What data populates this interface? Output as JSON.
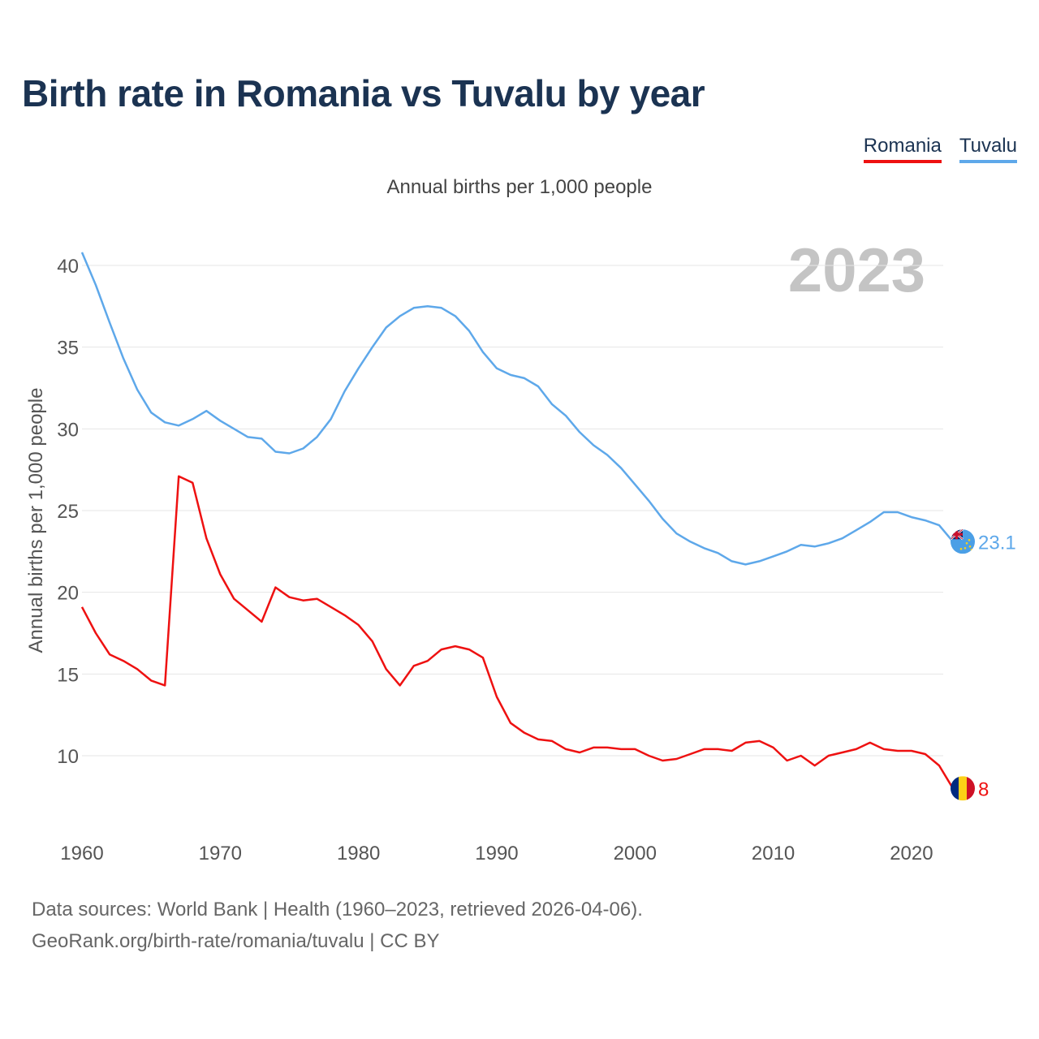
{
  "title": "Birth rate in Romania vs Tuvalu by year",
  "subtitle": "Annual births per 1,000 people",
  "year_label": "2023",
  "legend": [
    {
      "name": "Romania",
      "color": "#ee1111"
    },
    {
      "name": "Tuvalu",
      "color": "#5ea8ea"
    }
  ],
  "source_lines": [
    "Data sources: World Bank | Health (1960–2023, retrieved 2026-04-06).",
    "GeoRank.org/birth-rate/romania/tuvalu | CC BY"
  ],
  "chart_data": {
    "type": "line",
    "title": "Birth rate in Romania vs Tuvalu by year",
    "xlabel": "",
    "ylabel": "Annual births per 1,000 people",
    "xlim": [
      1960,
      2023
    ],
    "ylim": [
      6,
      43
    ],
    "x_ticks": [
      1960,
      1970,
      1980,
      1990,
      2000,
      2010,
      2020
    ],
    "y_ticks": [
      10,
      15,
      20,
      25,
      30,
      35,
      40
    ],
    "grid": true,
    "legend_position": "top-right",
    "x": [
      1960,
      1961,
      1962,
      1963,
      1964,
      1965,
      1966,
      1967,
      1968,
      1969,
      1970,
      1971,
      1972,
      1973,
      1974,
      1975,
      1976,
      1977,
      1978,
      1979,
      1980,
      1981,
      1982,
      1983,
      1984,
      1985,
      1986,
      1987,
      1988,
      1989,
      1990,
      1991,
      1992,
      1993,
      1994,
      1995,
      1996,
      1997,
      1998,
      1999,
      2000,
      2001,
      2002,
      2003,
      2004,
      2005,
      2006,
      2007,
      2008,
      2009,
      2010,
      2011,
      2012,
      2013,
      2014,
      2015,
      2016,
      2017,
      2018,
      2019,
      2020,
      2021,
      2022,
      2023
    ],
    "series": [
      {
        "name": "Romania",
        "color": "#ee1111",
        "end_label": "8",
        "values": [
          19.1,
          17.5,
          16.2,
          15.8,
          15.3,
          14.6,
          14.3,
          27.1,
          26.7,
          23.3,
          21.1,
          19.6,
          18.9,
          18.2,
          20.3,
          19.7,
          19.5,
          19.6,
          19.1,
          18.6,
          18.0,
          17.0,
          15.3,
          14.3,
          15.5,
          15.8,
          16.5,
          16.7,
          16.5,
          16.0,
          13.6,
          12.0,
          11.4,
          11.0,
          10.9,
          10.4,
          10.2,
          10.5,
          10.5,
          10.4,
          10.4,
          10.0,
          9.7,
          9.8,
          10.1,
          10.4,
          10.4,
          10.3,
          10.8,
          10.9,
          10.5,
          9.7,
          10.0,
          9.4,
          10.0,
          10.2,
          10.4,
          10.8,
          10.4,
          10.3,
          10.3,
          10.1,
          9.4,
          8.0
        ]
      },
      {
        "name": "Tuvalu",
        "color": "#5ea8ea",
        "end_label": "23.1",
        "values": [
          40.8,
          38.8,
          36.5,
          34.3,
          32.4,
          31.0,
          30.4,
          30.2,
          30.6,
          31.1,
          30.5,
          30.0,
          29.5,
          29.4,
          28.6,
          28.5,
          28.8,
          29.5,
          30.6,
          32.3,
          33.7,
          35.0,
          36.2,
          36.9,
          37.4,
          37.5,
          37.4,
          36.9,
          36.0,
          34.7,
          33.7,
          33.3,
          33.1,
          32.6,
          31.5,
          30.8,
          29.8,
          29.0,
          28.4,
          27.6,
          26.6,
          25.6,
          24.5,
          23.6,
          23.1,
          22.7,
          22.4,
          21.9,
          21.7,
          21.9,
          22.2,
          22.5,
          22.9,
          22.8,
          23.0,
          23.3,
          23.8,
          24.3,
          24.9,
          24.9,
          24.6,
          24.4,
          24.1,
          23.1
        ]
      }
    ]
  }
}
